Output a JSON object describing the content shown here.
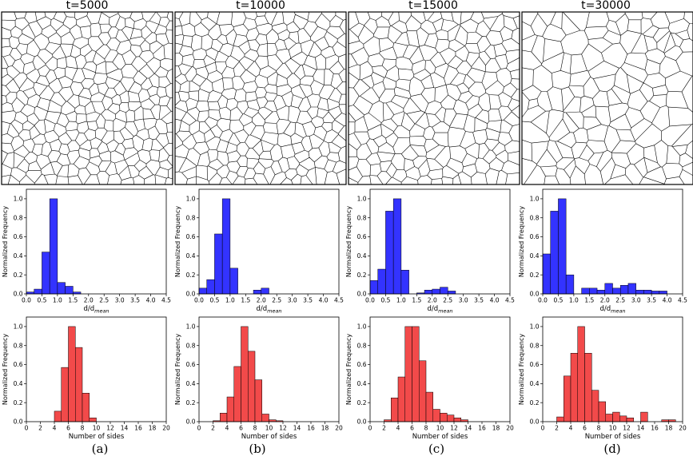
{
  "panels": [
    {
      "time_label": "t=5000",
      "caption": "(a)"
    },
    {
      "time_label": "t=10000",
      "caption": "(b)"
    },
    {
      "time_label": "t=15000",
      "caption": "(c)"
    },
    {
      "time_label": "t=30000",
      "caption": "(d)"
    }
  ],
  "colors": {
    "size_hist": "#3333ff",
    "sides_hist": "#f24a4a",
    "grain_edge": "#000000"
  },
  "chart_data": [
    {
      "id": "size-a",
      "type": "bar",
      "title": "",
      "xlabel_main": "d/d",
      "xlabel_sub": "mean",
      "ylabel": "Normalized Frequency",
      "bin_width": 0.25,
      "bin_start": 0.0,
      "values": [
        0.02,
        0.05,
        0.44,
        1.0,
        0.12,
        0.08,
        0.02,
        0,
        0,
        0,
        0,
        0,
        0,
        0,
        0,
        0,
        0
      ],
      "xlim": [
        0,
        4.5
      ],
      "ylim": [
        0,
        1.1
      ],
      "xticks": [
        "0.0",
        "0.5",
        "1.0",
        "1.5",
        "2.0",
        "2.5",
        "3.0",
        "3.5",
        "4.0",
        "4.5"
      ],
      "yticks": [
        "0.0",
        "0.2",
        "0.4",
        "0.6",
        "0.8",
        "1.0"
      ]
    },
    {
      "id": "size-b",
      "type": "bar",
      "title": "",
      "xlabel_main": "d/d",
      "xlabel_sub": "mean",
      "ylabel": "Normalized Frequency",
      "bin_width": 0.25,
      "bin_start": 0.0,
      "values": [
        0.06,
        0.15,
        0.63,
        1.0,
        0.27,
        0,
        0,
        0.04,
        0.06,
        0,
        0,
        0,
        0,
        0,
        0,
        0,
        0
      ],
      "xlim": [
        0,
        4.5
      ],
      "ylim": [
        0,
        1.1
      ],
      "xticks": [
        "0.0",
        "0.5",
        "1.0",
        "1.5",
        "2.0",
        "2.5",
        "3.0",
        "3.5",
        "4.0",
        "4.5"
      ],
      "yticks": [
        "0.0",
        "0.2",
        "0.4",
        "0.6",
        "0.8",
        "1.0"
      ]
    },
    {
      "id": "size-c",
      "type": "bar",
      "title": "",
      "xlabel_main": "d/d",
      "xlabel_sub": "mean",
      "ylabel": "Normalized Frequency",
      "bin_width": 0.25,
      "bin_start": 0.0,
      "values": [
        0.14,
        0.26,
        0.87,
        1.0,
        0.25,
        0,
        0.01,
        0.04,
        0.05,
        0.07,
        0.03,
        0,
        0,
        0,
        0,
        0,
        0
      ],
      "xlim": [
        0,
        4.5
      ],
      "ylim": [
        0,
        1.1
      ],
      "xticks": [
        "0.0",
        "0.5",
        "1.0",
        "1.5",
        "2.0",
        "2.5",
        "3.0",
        "3.5",
        "4.0",
        "4.5"
      ],
      "yticks": [
        "0.0",
        "0.2",
        "0.4",
        "0.6",
        "0.8",
        "1.0"
      ]
    },
    {
      "id": "size-d",
      "type": "bar",
      "title": "",
      "xlabel_main": "d/d",
      "xlabel_sub": "mean",
      "ylabel": "Normalized Frequency",
      "bin_width": 0.25,
      "bin_start": 0.0,
      "values": [
        0.42,
        0.87,
        1.0,
        0.2,
        0,
        0.06,
        0.06,
        0.04,
        0.11,
        0.06,
        0.09,
        0.11,
        0.04,
        0.04,
        0.03,
        0.03,
        0
      ],
      "xlim": [
        0,
        4.5
      ],
      "ylim": [
        0,
        1.1
      ],
      "xticks": [
        "0.0",
        "0.5",
        "1.0",
        "1.5",
        "2.0",
        "2.5",
        "3.0",
        "3.5",
        "4.0",
        "4.5"
      ],
      "yticks": [
        "0.0",
        "0.2",
        "0.4",
        "0.6",
        "0.8",
        "1.0"
      ]
    },
    {
      "id": "sides-a",
      "type": "bar",
      "title": "",
      "xlabel_main": "Number of sides",
      "xlabel_sub": "",
      "ylabel": "Normalized Frequency",
      "bin_width": 1,
      "bin_start": 2,
      "values": [
        0,
        0,
        0.11,
        0.57,
        1.0,
        0.78,
        0.3,
        0.04,
        0,
        0,
        0,
        0,
        0,
        0,
        0,
        0,
        0,
        0
      ],
      "xlim": [
        0,
        20
      ],
      "ylim": [
        0,
        1.1
      ],
      "xticks": [
        "0",
        "2",
        "4",
        "6",
        "8",
        "10",
        "12",
        "14",
        "16",
        "18",
        "20"
      ],
      "yticks": [
        "0.0",
        "0.2",
        "0.4",
        "0.6",
        "0.8",
        "1.0"
      ]
    },
    {
      "id": "sides-b",
      "type": "bar",
      "title": "",
      "xlabel_main": "Number of sides",
      "xlabel_sub": "",
      "ylabel": "Normalized Frequency",
      "bin_width": 1,
      "bin_start": 2,
      "values": [
        0.01,
        0.09,
        0.26,
        0.58,
        1.0,
        0.74,
        0.44,
        0.08,
        0.02,
        0.01,
        0,
        0,
        0,
        0,
        0,
        0,
        0,
        0
      ],
      "xlim": [
        0,
        20
      ],
      "ylim": [
        0,
        1.1
      ],
      "xticks": [
        "0",
        "2",
        "4",
        "6",
        "8",
        "10",
        "12",
        "14",
        "16",
        "18",
        "20"
      ],
      "yticks": [
        "0.0",
        "0.2",
        "0.4",
        "0.6",
        "0.8",
        "1.0"
      ]
    },
    {
      "id": "sides-c",
      "type": "bar",
      "title": "",
      "xlabel_main": "Number of sides",
      "xlabel_sub": "",
      "ylabel": "Normalized Frequency",
      "bin_width": 1,
      "bin_start": 2,
      "values": [
        0.02,
        0.25,
        0.47,
        1.0,
        1.0,
        0.64,
        0.31,
        0.13,
        0.09,
        0.07,
        0.04,
        0.02,
        0,
        0,
        0,
        0,
        0,
        0
      ],
      "xlim": [
        0,
        20
      ],
      "ylim": [
        0,
        1.1
      ],
      "xticks": [
        "0",
        "2",
        "4",
        "6",
        "8",
        "10",
        "12",
        "14",
        "16",
        "18",
        "20"
      ],
      "yticks": [
        "0.0",
        "0.2",
        "0.4",
        "0.6",
        "0.8",
        "1.0"
      ]
    },
    {
      "id": "sides-d",
      "type": "bar",
      "title": "",
      "xlabel_main": "Number of sides",
      "xlabel_sub": "",
      "ylabel": "Normalized Frequency",
      "bin_width": 1,
      "bin_start": 2,
      "values": [
        0.05,
        0.48,
        0.72,
        1.0,
        0.72,
        0.33,
        0.21,
        0.08,
        0.1,
        0.06,
        0.04,
        0,
        0.1,
        0,
        0,
        0.02,
        0.02,
        0
      ],
      "xlim": [
        0,
        20
      ],
      "ylim": [
        0,
        1.1
      ],
      "xticks": [
        "0",
        "2",
        "4",
        "6",
        "8",
        "10",
        "12",
        "14",
        "16",
        "18",
        "20"
      ],
      "yticks": [
        "0.0",
        "0.2",
        "0.4",
        "0.6",
        "0.8",
        "1.0"
      ]
    }
  ]
}
